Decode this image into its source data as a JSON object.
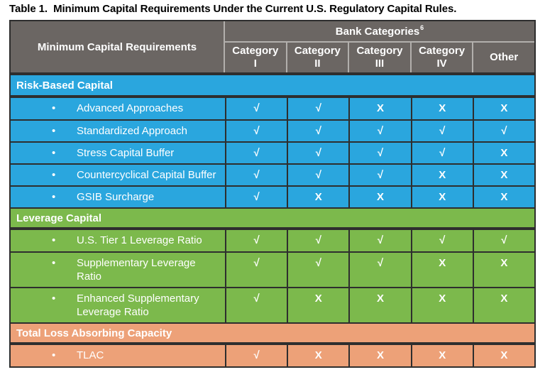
{
  "title": "Table 1.  Minimum Capital Requirements Under the Current U.S. Regulatory Capital Rules.",
  "colors": {
    "header_bg": "#6B6663",
    "header_divider": "#B2AFAC",
    "grid_line": "#2E2E2E",
    "risk_based": "#2AA6DE",
    "leverage": "#7CB94C",
    "tlac": "#EDA178",
    "text_on_fill": "#FFFFFF",
    "title_text": "#000000"
  },
  "glyphs": {
    "check": "√",
    "cross": "X",
    "bullet": "•"
  },
  "header": {
    "row_label": "Minimum Capital Requirements",
    "group_label": "Bank Categories",
    "footnote_marker": "6",
    "columns": [
      {
        "lines": [
          "Category",
          "I"
        ]
      },
      {
        "lines": [
          "Category",
          "II"
        ]
      },
      {
        "lines": [
          "Category",
          "III"
        ]
      },
      {
        "lines": [
          "Category",
          "IV"
        ]
      },
      {
        "lines": [
          "Other"
        ]
      }
    ]
  },
  "sections": [
    {
      "name": "Risk-Based Capital",
      "color_key": "risk_based",
      "rows": [
        {
          "label": "Advanced Approaches",
          "values": [
            "check",
            "check",
            "cross",
            "cross",
            "cross"
          ]
        },
        {
          "label": "Standardized Approach",
          "values": [
            "check",
            "check",
            "check",
            "check",
            "check"
          ]
        },
        {
          "label": "Stress Capital Buffer",
          "values": [
            "check",
            "check",
            "check",
            "check",
            "cross"
          ]
        },
        {
          "label": "Countercyclical Capital Buffer",
          "values": [
            "check",
            "check",
            "check",
            "cross",
            "cross"
          ]
        },
        {
          "label": "GSIB Surcharge",
          "values": [
            "check",
            "cross",
            "cross",
            "cross",
            "cross"
          ]
        }
      ]
    },
    {
      "name": "Leverage Capital",
      "color_key": "leverage",
      "rows": [
        {
          "label": "U.S. Tier 1 Leverage Ratio",
          "values": [
            "check",
            "check",
            "check",
            "check",
            "check"
          ]
        },
        {
          "label": "Supplementary Leverage Ratio",
          "values": [
            "check",
            "check",
            "check",
            "cross",
            "cross"
          ]
        },
        {
          "label": "Enhanced Supplementary Leverage Ratio",
          "values": [
            "check",
            "cross",
            "cross",
            "cross",
            "cross"
          ]
        }
      ]
    },
    {
      "name": "Total Loss Absorbing Capacity",
      "color_key": "tlac",
      "rows": [
        {
          "label": "TLAC",
          "values": [
            "check",
            "cross",
            "cross",
            "cross",
            "cross"
          ]
        }
      ]
    }
  ]
}
